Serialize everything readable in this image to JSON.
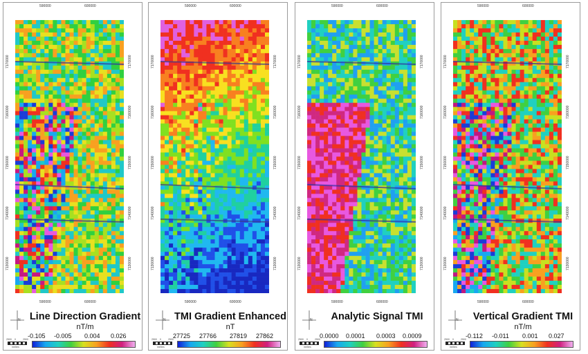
{
  "panels": [
    {
      "title": "Line Direction Gradient",
      "unit": "nT/m",
      "colorbar": [
        "-0.105",
        "-0.005",
        "0.004",
        "0.026"
      ],
      "type": "ldg"
    },
    {
      "title": "TMI Gradient Enhanced",
      "unit": "nT",
      "colorbar": [
        "27725",
        "27766",
        "27819",
        "27862"
      ],
      "type": "tmi"
    },
    {
      "title": "Analytic Signal TMI",
      "unit": "",
      "colorbar": [
        "0.0000",
        "0.0001",
        "0.0003",
        "0.0009"
      ],
      "type": "as"
    },
    {
      "title": "Vertical Gradient TMI",
      "unit": "nT/m",
      "colorbar": [
        "-0.112",
        "-0.011",
        "0.001",
        "0.027"
      ],
      "type": "vg"
    }
  ],
  "x_ticks": [
    "590000",
    "600000"
  ],
  "y_ticks": [
    "7170000",
    "7160000",
    "7150000",
    "7140000",
    "7130000"
  ],
  "compass_label": "N",
  "scale_labels": [
    "2500",
    "0",
    "2500"
  ],
  "scale_unit": "metres",
  "colors": {
    "background": "#ffffff",
    "border": "#9a9a9a"
  }
}
